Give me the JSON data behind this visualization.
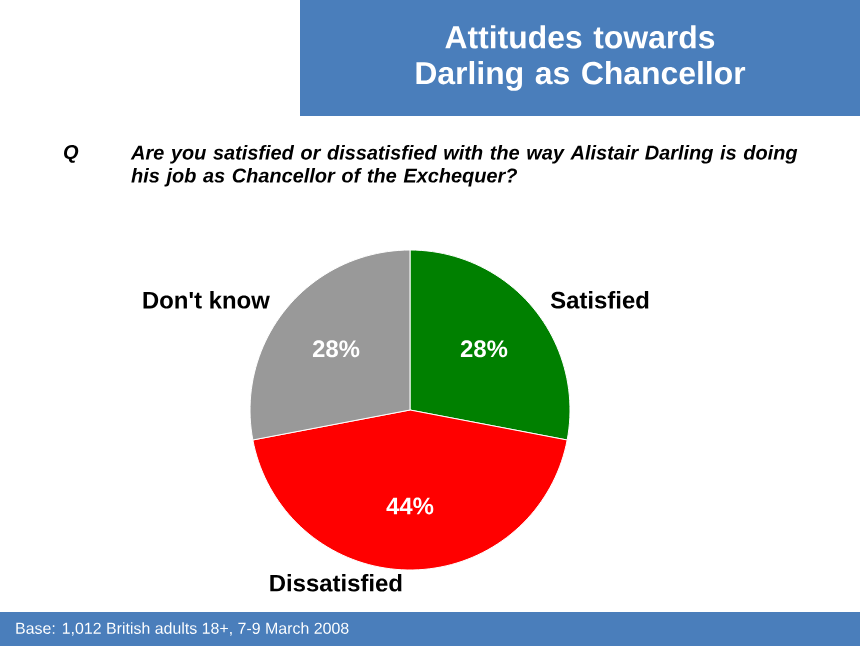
{
  "chart_data": {
    "type": "pie",
    "title": "Attitudes towards Darling as Chancellor",
    "subtitle": "Are you satisfied or dissatisfied with the way Alistair Darling is doing his job as Chancellor of the Exchequer?",
    "categories": [
      "Satisfied",
      "Dissatisfied",
      "Don't know"
    ],
    "values": [
      28,
      44,
      28
    ],
    "colors": [
      "#008000",
      "#ff0000",
      "#999999"
    ],
    "value_labels": [
      "28%",
      "44%",
      "28%"
    ],
    "annotations": [
      "Q",
      "Base: 1,012  British adults 18+, 7-9 March 2008"
    ]
  }
}
